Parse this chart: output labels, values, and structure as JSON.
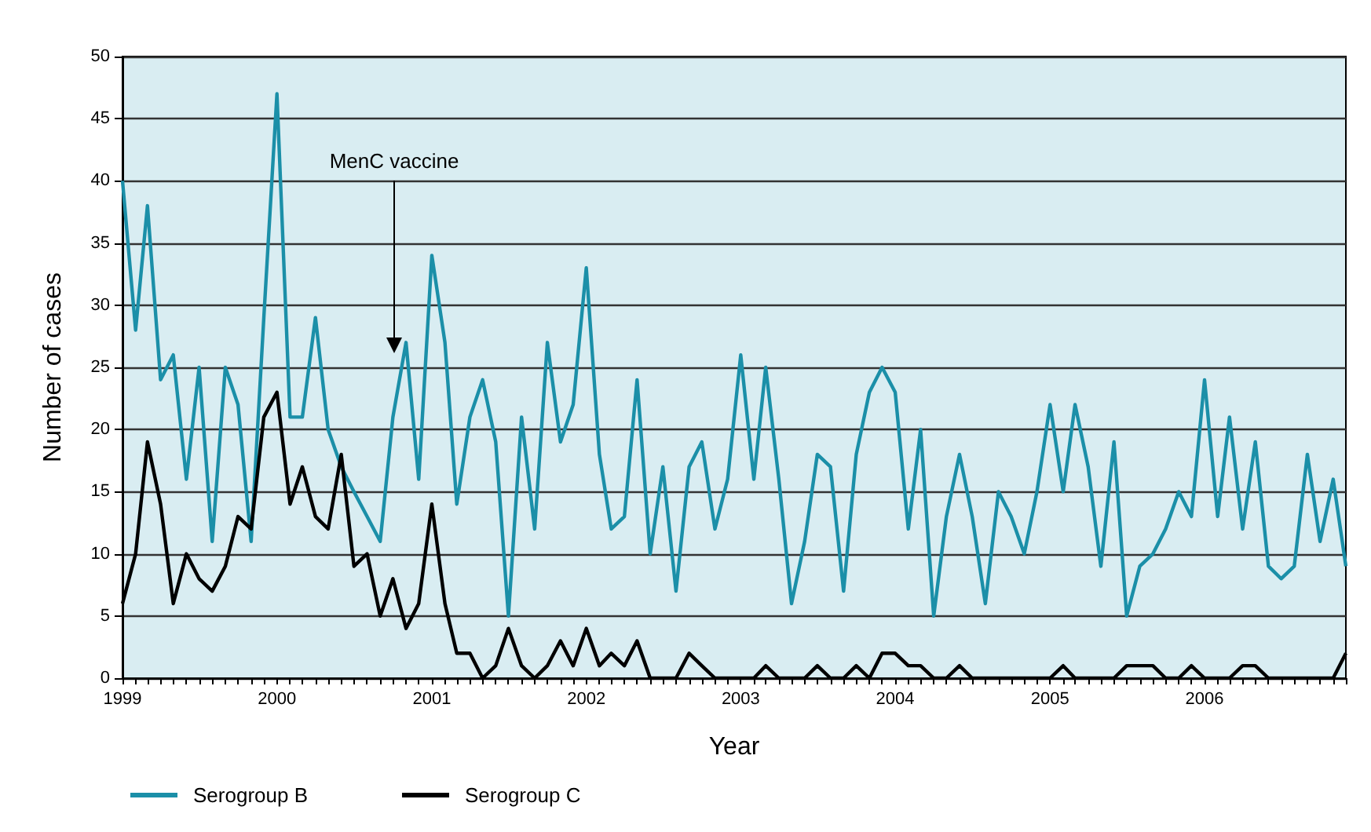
{
  "chart_data": {
    "type": "line",
    "xlabel": "Year",
    "ylabel": "Number of cases",
    "x": [
      "1999-01",
      "1999-02",
      "1999-03",
      "1999-04",
      "1999-05",
      "1999-06",
      "1999-07",
      "1999-08",
      "1999-09",
      "1999-10",
      "1999-11",
      "1999-12",
      "2000-01",
      "2000-02",
      "2000-03",
      "2000-04",
      "2000-05",
      "2000-06",
      "2000-07",
      "2000-08",
      "2000-09",
      "2000-10",
      "2000-11",
      "2000-12",
      "2001-01",
      "2001-02",
      "2001-03",
      "2001-04",
      "2001-05",
      "2001-06",
      "2001-07",
      "2001-08",
      "2001-09",
      "2001-10",
      "2001-11",
      "2001-12",
      "2002-01",
      "2002-02",
      "2002-03",
      "2002-04",
      "2002-05",
      "2002-06",
      "2002-07",
      "2002-08",
      "2002-09",
      "2002-10",
      "2002-11",
      "2002-12",
      "2003-01",
      "2003-02",
      "2003-03",
      "2003-04",
      "2003-05",
      "2003-06",
      "2003-07",
      "2003-08",
      "2003-09",
      "2003-10",
      "2003-11",
      "2003-12",
      "2004-01",
      "2004-02",
      "2004-03",
      "2004-04",
      "2004-05",
      "2004-06",
      "2004-07",
      "2004-08",
      "2004-09",
      "2004-10",
      "2004-11",
      "2004-12",
      "2005-01",
      "2005-02",
      "2005-03",
      "2005-04",
      "2005-05",
      "2005-06",
      "2005-07",
      "2005-08",
      "2005-09",
      "2005-10",
      "2005-11",
      "2005-12",
      "2006-01",
      "2006-02",
      "2006-03",
      "2006-04",
      "2006-05",
      "2006-06",
      "2006-07",
      "2006-08",
      "2006-09",
      "2006-10",
      "2006-11",
      "2006-12"
    ],
    "series": [
      {
        "name": "Serogroup B",
        "color": "#1b8fa8",
        "values": [
          40,
          28,
          38,
          24,
          26,
          16,
          25,
          11,
          25,
          22,
          11,
          29,
          47,
          21,
          21,
          29,
          20,
          17,
          15,
          13,
          11,
          21,
          27,
          16,
          34,
          27,
          14,
          21,
          24,
          19,
          5,
          21,
          12,
          27,
          19,
          22,
          33,
          18,
          12,
          13,
          24,
          10,
          17,
          7,
          17,
          19,
          12,
          16,
          26,
          16,
          25,
          16,
          6,
          11,
          18,
          17,
          7,
          18,
          23,
          25,
          23,
          12,
          20,
          5,
          13,
          18,
          13,
          6,
          15,
          13,
          10,
          15,
          22,
          15,
          22,
          17,
          9,
          19,
          5,
          9,
          10,
          12,
          15,
          13,
          24,
          13,
          21,
          12,
          19,
          9,
          8,
          9,
          18,
          11,
          16,
          9
        ]
      },
      {
        "name": "Serogroup C",
        "color": "#000000",
        "values": [
          6,
          10,
          19,
          14,
          6,
          10,
          8,
          7,
          9,
          13,
          12,
          21,
          23,
          14,
          17,
          13,
          12,
          18,
          9,
          10,
          5,
          8,
          4,
          6,
          14,
          6,
          2,
          2,
          0,
          1,
          4,
          1,
          0,
          1,
          3,
          1,
          4,
          1,
          2,
          1,
          3,
          0,
          0,
          0,
          2,
          1,
          0,
          0,
          0,
          0,
          1,
          0,
          0,
          0,
          1,
          0,
          0,
          1,
          0,
          2,
          2,
          1,
          1,
          0,
          0,
          1,
          0,
          0,
          0,
          0,
          0,
          0,
          0,
          1,
          0,
          0,
          0,
          0,
          1,
          1,
          1,
          0,
          0,
          1,
          0,
          0,
          0,
          1,
          1,
          0,
          0,
          0,
          0,
          0,
          0,
          2
        ]
      }
    ],
    "xlim": [
      "1999-01",
      "2006-12"
    ],
    "xticks": [
      "1999",
      "2000",
      "2001",
      "2002",
      "2003",
      "2004",
      "2005",
      "2006"
    ],
    "ylim": [
      0,
      50
    ],
    "yticks": [
      0,
      5,
      10,
      15,
      20,
      25,
      30,
      35,
      40,
      45,
      50
    ],
    "grid": "y",
    "legend": "bottom left",
    "marker": "none",
    "line_style": "solid",
    "annotations": [
      "MenC vaccine"
    ]
  }
}
